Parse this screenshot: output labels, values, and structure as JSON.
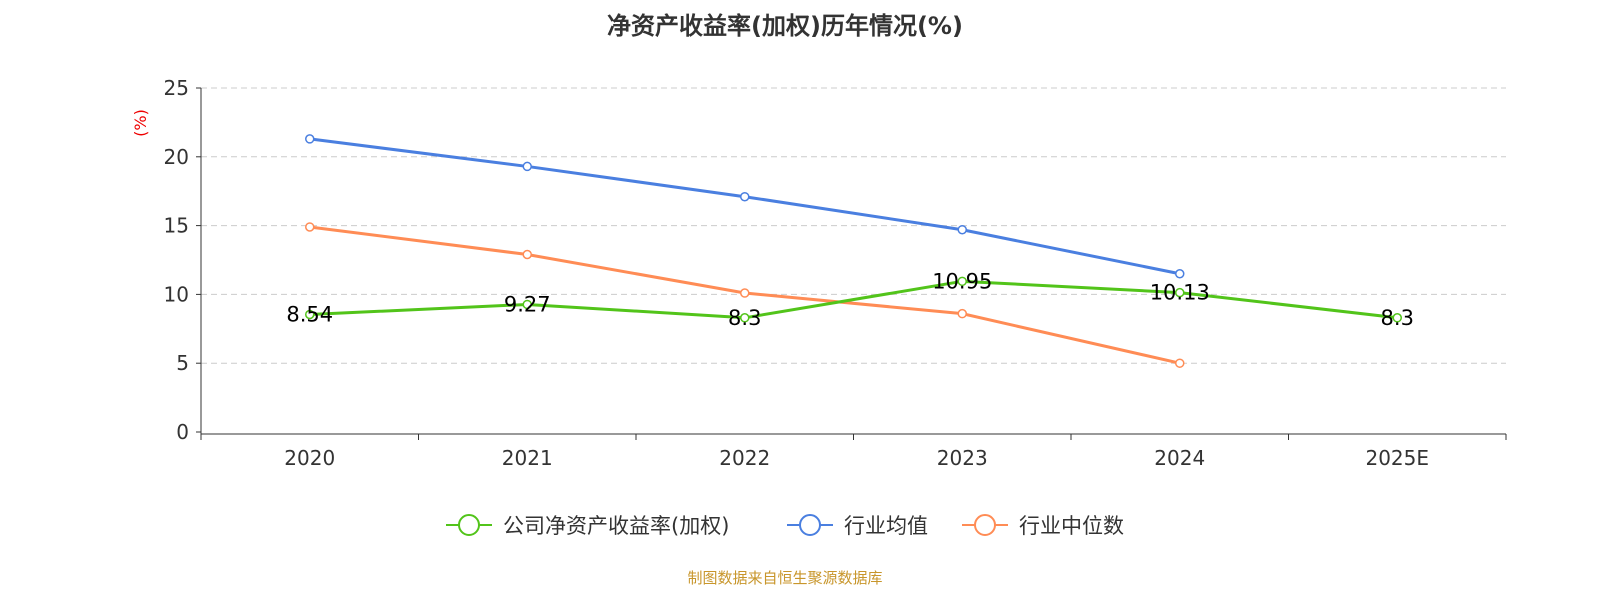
{
  "chart_data": {
    "type": "line",
    "title": "净资产收益率(加权)历年情况(%)",
    "ylabel": "(%)",
    "categories": [
      "2020",
      "2021",
      "2022",
      "2023",
      "2024",
      "2025E"
    ],
    "ylim": [
      0,
      25
    ],
    "yticks": [
      0,
      5,
      10,
      15,
      20,
      25
    ],
    "grid": true,
    "legend_position": "bottom",
    "series": [
      {
        "name": "公司净资产收益率(加权)",
        "color": "#52c41a",
        "values": [
          8.54,
          9.27,
          8.3,
          10.95,
          10.13,
          8.3
        ],
        "show_labels": true
      },
      {
        "name": "行业均值",
        "color": "#4a7fe0",
        "values": [
          21.3,
          19.3,
          17.1,
          14.7,
          11.5,
          null
        ],
        "show_labels": false
      },
      {
        "name": "行业中位数",
        "color": "#ff8c55",
        "values": [
          14.9,
          12.9,
          10.1,
          8.6,
          5.0,
          null
        ],
        "show_labels": false
      }
    ]
  },
  "footer": "制图数据来自恒生聚源数据库"
}
